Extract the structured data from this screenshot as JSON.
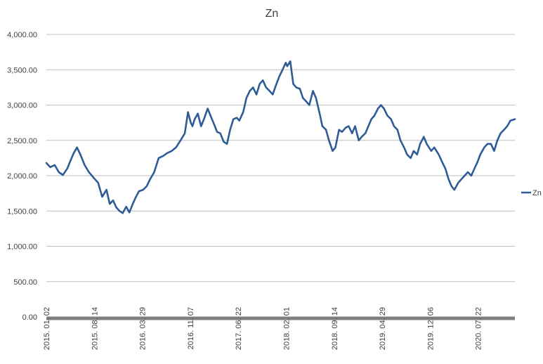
{
  "chart_data": {
    "type": "line",
    "title": "Zn",
    "xlabel": "",
    "ylabel": "",
    "ylim": [
      0,
      4000
    ],
    "y_ticks": [
      "0.00",
      "500.00",
      "1,000.00",
      "1,500.00",
      "2,000.00",
      "2,500.00",
      "3,000.00",
      "3,500.00",
      "4,000.00"
    ],
    "x_ticks": [
      "2015. 01. 02",
      "2015. 08. 14",
      "2016. 03. 29",
      "2016. 11. 07",
      "2017. 06. 22",
      "2018. 02. 01",
      "2018. 09. 14",
      "2019. 04. 29",
      "2019. 12. 06",
      "2020. 07. 22"
    ],
    "grid": "horizontal",
    "legend_position": "right",
    "colors": {
      "series": "#2f5c97",
      "grid": "#bfbfbf",
      "axis": "#7f7f7f"
    },
    "series": [
      {
        "name": "Zn",
        "x": [
          "2015-01-02",
          "2015-01-20",
          "2015-02-10",
          "2015-03-01",
          "2015-03-20",
          "2015-04-10",
          "2015-04-30",
          "2015-05-10",
          "2015-05-25",
          "2015-06-10",
          "2015-06-30",
          "2015-07-20",
          "2015-08-14",
          "2015-09-01",
          "2015-09-20",
          "2015-10-10",
          "2015-10-25",
          "2015-11-10",
          "2015-11-25",
          "2015-12-10",
          "2015-12-25",
          "2016-01-10",
          "2016-01-25",
          "2016-02-10",
          "2016-02-25",
          "2016-03-10",
          "2016-03-29",
          "2016-04-15",
          "2016-05-01",
          "2016-05-20",
          "2016-06-10",
          "2016-07-01",
          "2016-07-20",
          "2016-08-10",
          "2016-08-30",
          "2016-09-20",
          "2016-10-10",
          "2016-10-25",
          "2016-11-07",
          "2016-11-15",
          "2016-11-25",
          "2016-12-10",
          "2016-12-25",
          "2017-01-10",
          "2017-01-25",
          "2017-02-10",
          "2017-02-25",
          "2017-03-10",
          "2017-03-25",
          "2017-04-10",
          "2017-04-25",
          "2017-05-10",
          "2017-05-25",
          "2017-06-10",
          "2017-06-22",
          "2017-07-10",
          "2017-07-25",
          "2017-08-10",
          "2017-08-25",
          "2017-09-10",
          "2017-09-25",
          "2017-10-10",
          "2017-10-25",
          "2017-11-10",
          "2017-11-25",
          "2017-12-10",
          "2017-12-25",
          "2018-01-10",
          "2018-01-25",
          "2018-02-01",
          "2018-02-15",
          "2018-03-01",
          "2018-03-15",
          "2018-04-01",
          "2018-04-15",
          "2018-05-01",
          "2018-05-15",
          "2018-06-01",
          "2018-06-15",
          "2018-07-01",
          "2018-07-15",
          "2018-08-01",
          "2018-08-15",
          "2018-09-01",
          "2018-09-14",
          "2018-10-01",
          "2018-10-15",
          "2018-11-01",
          "2018-11-15",
          "2018-12-01",
          "2018-12-15",
          "2019-01-01",
          "2019-01-15",
          "2019-02-01",
          "2019-02-15",
          "2019-03-01",
          "2019-03-15",
          "2019-04-01",
          "2019-04-15",
          "2019-04-29",
          "2019-05-15",
          "2019-06-01",
          "2019-06-15",
          "2019-07-01",
          "2019-07-15",
          "2019-08-01",
          "2019-08-15",
          "2019-09-01",
          "2019-09-15",
          "2019-10-01",
          "2019-10-15",
          "2019-11-01",
          "2019-11-15",
          "2019-12-06",
          "2019-12-20",
          "2020-01-10",
          "2020-01-25",
          "2020-02-10",
          "2020-02-25",
          "2020-03-10",
          "2020-03-23",
          "2020-04-10",
          "2020-04-25",
          "2020-05-10",
          "2020-05-25",
          "2020-06-10",
          "2020-06-25",
          "2020-07-10",
          "2020-07-22",
          "2020-08-10",
          "2020-08-25",
          "2020-09-10",
          "2020-09-25",
          "2020-10-10",
          "2020-10-25",
          "2020-11-10",
          "2020-11-25",
          "2020-12-10",
          "2020-12-31"
        ],
        "values": [
          2180,
          2120,
          2150,
          2050,
          2010,
          2100,
          2250,
          2320,
          2400,
          2300,
          2150,
          2050,
          1960,
          1900,
          1700,
          1800,
          1600,
          1650,
          1550,
          1500,
          1470,
          1560,
          1480,
          1600,
          1700,
          1780,
          1800,
          1850,
          1950,
          2050,
          2250,
          2280,
          2320,
          2350,
          2400,
          2500,
          2600,
          2900,
          2750,
          2700,
          2800,
          2880,
          2700,
          2820,
          2950,
          2830,
          2720,
          2620,
          2600,
          2480,
          2450,
          2650,
          2800,
          2820,
          2780,
          2900,
          3100,
          3200,
          3250,
          3150,
          3300,
          3350,
          3250,
          3200,
          3150,
          3280,
          3400,
          3500,
          3600,
          3550,
          3620,
          3300,
          3250,
          3230,
          3100,
          3050,
          3000,
          3200,
          3100,
          2900,
          2700,
          2650,
          2500,
          2350,
          2400,
          2650,
          2620,
          2680,
          2700,
          2600,
          2700,
          2500,
          2550,
          2600,
          2700,
          2800,
          2850,
          2950,
          3000,
          2950,
          2850,
          2800,
          2700,
          2650,
          2500,
          2400,
          2300,
          2250,
          2350,
          2300,
          2450,
          2550,
          2450,
          2350,
          2400,
          2300,
          2200,
          2100,
          1950,
          1850,
          1800,
          1900,
          1950,
          2000,
          2050,
          2000,
          2100,
          2200,
          2300,
          2400,
          2450,
          2450,
          2350,
          2500,
          2600,
          2650,
          2700,
          2780,
          2800
        ]
      }
    ]
  }
}
